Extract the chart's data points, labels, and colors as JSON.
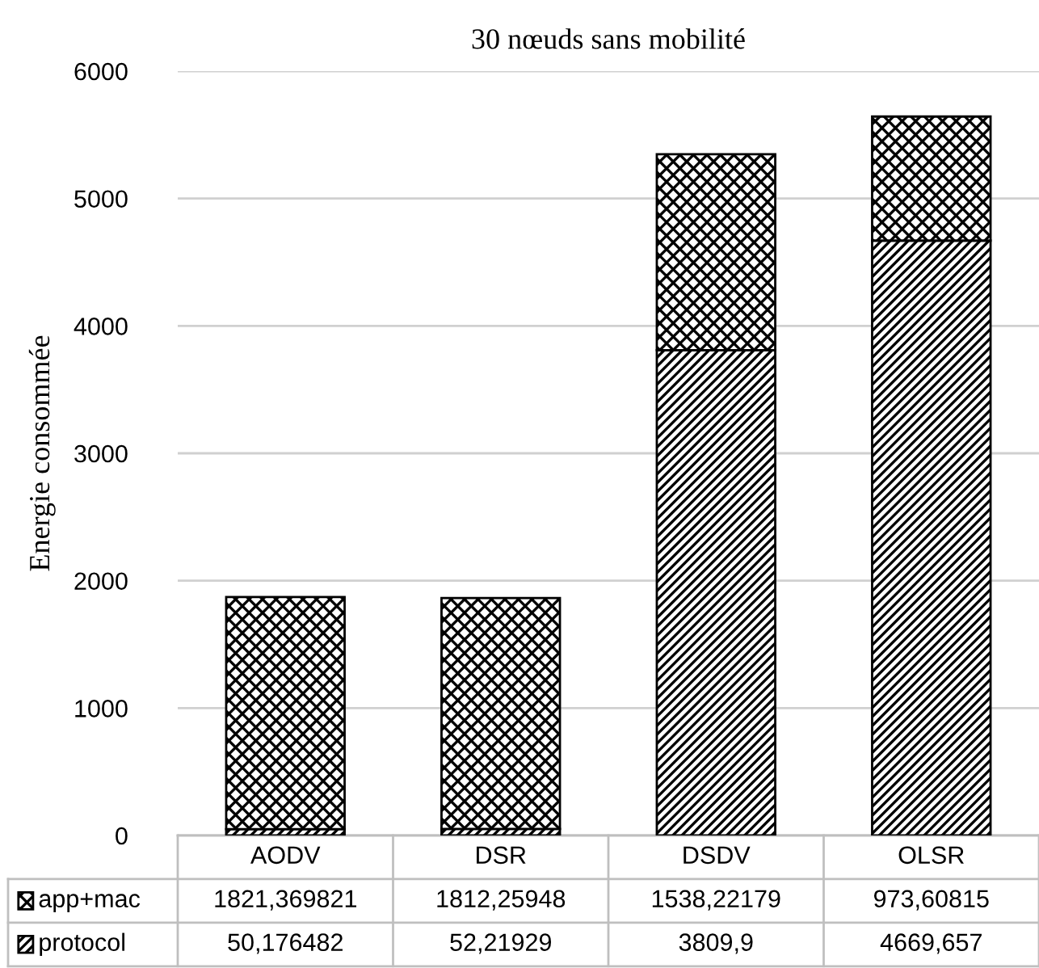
{
  "chart_data": {
    "type": "bar",
    "stacked": true,
    "title": "30 nœuds sans mobilité",
    "ylabel": "Energie consommée",
    "categories": [
      "AODV",
      "DSR",
      "DSDV",
      "OLSR"
    ],
    "series": [
      {
        "name": "protocol",
        "color": "#000000",
        "values": [
          50.176482,
          52.21929,
          3809.9,
          4669.657
        ],
        "value_labels": [
          "50,176482",
          "52,21929",
          "3809,9",
          "4669,657"
        ]
      },
      {
        "name": "app+mac",
        "color": "#000000",
        "values": [
          1821.369821,
          1812.25948,
          1538.22179,
          973.60815
        ],
        "value_labels": [
          "1821,369821",
          "1812,25948",
          "1538,22179",
          "973,60815"
        ]
      }
    ],
    "ylim": [
      0,
      6000
    ],
    "yticks": [
      0,
      1000,
      2000,
      3000,
      4000,
      5000,
      6000
    ],
    "grid": "y",
    "legend": "bottom"
  }
}
